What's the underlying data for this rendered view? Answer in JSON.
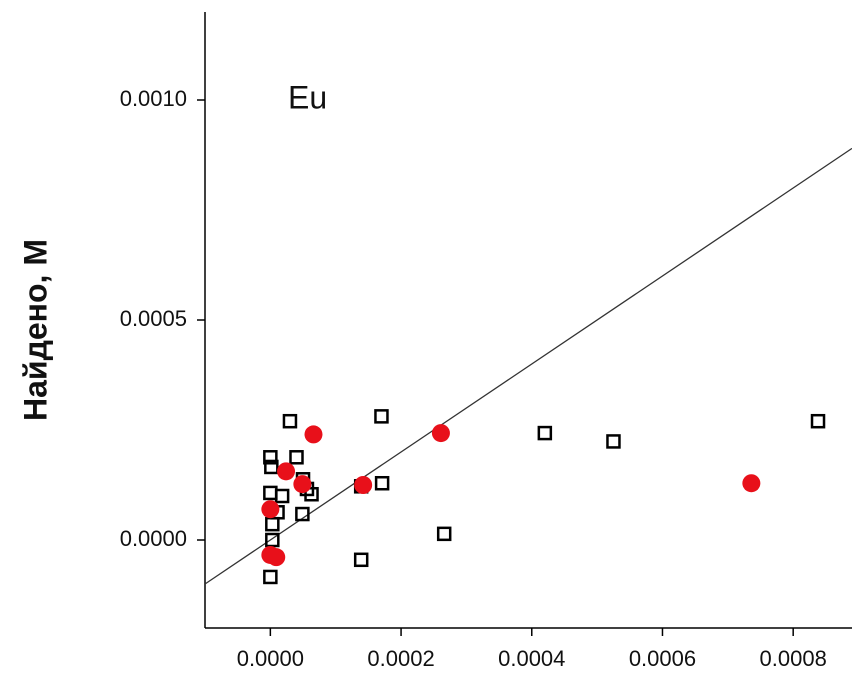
{
  "chart_data": {
    "type": "scatter",
    "y_label": "Найдено, М",
    "annotation": "Eu",
    "xlim": [
      -0.0001,
      0.00089
    ],
    "ylim": [
      -0.0002,
      0.0012
    ],
    "xticks": [
      {
        "value": 0,
        "label": "0.0000"
      },
      {
        "value": 0.0002,
        "label": "0.0002"
      },
      {
        "value": 0.0004,
        "label": "0.0004"
      },
      {
        "value": 0.0006,
        "label": "0.0006"
      },
      {
        "value": 0.0008,
        "label": "0.0008"
      }
    ],
    "yticks": [
      {
        "value": 0,
        "label": "0.0000"
      },
      {
        "value": 0.0005,
        "label": "0.0005"
      },
      {
        "value": 0.001,
        "label": "0.0010"
      }
    ],
    "reference_line": {
      "x": [
        -0.0001,
        0.00089
      ],
      "y": [
        -0.0001,
        0.00089
      ],
      "color": "#333333"
    },
    "series": [
      {
        "marker": "square",
        "color": "#000000",
        "x": [
          0,
          1.5e-06,
          3e-05,
          4e-05,
          0.00017,
          5e-05,
          5.6e-05,
          6.3e-05,
          4.9e-05,
          1.8e-05,
          0,
          1.1e-05,
          3e-06,
          3e-06,
          0,
          0.000139,
          0.000171,
          0.000139,
          0.000266,
          0.00042,
          0.000525,
          0.000838
        ],
        "values": [
          0.000188,
          0.000166,
          0.00027,
          0.000188,
          0.000281,
          0.000138,
          0.000116,
          0.000104,
          5.9e-05,
          0.0001,
          0.000107,
          6.3e-05,
          3.6e-05,
          0.0,
          -8.4e-05,
          -4.5e-05,
          0.000129,
          0.000122,
          1.4e-05,
          0.000243,
          0.000224,
          0.00027
        ]
      },
      {
        "marker": "circle",
        "color": "#e8101a",
        "x": [
          6.6e-05,
          2.4e-05,
          4.9e-05,
          0.000142,
          0.000261,
          0.000736,
          0,
          0,
          9e-06
        ],
        "values": [
          0.00024,
          0.000156,
          0.000127,
          0.000125,
          0.000243,
          0.000129,
          7e-05,
          -3.4e-05,
          -3.9e-05
        ]
      }
    ]
  }
}
